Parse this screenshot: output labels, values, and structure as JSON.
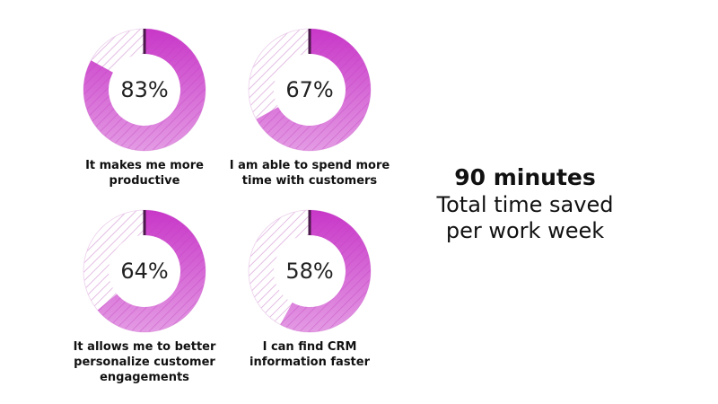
{
  "chart_data": [
    {
      "type": "donut",
      "values": [
        83
      ],
      "value_labels": [
        "83%"
      ],
      "label": "It makes me more productive",
      "color": "#c837c8"
    },
    {
      "type": "donut",
      "values": [
        67
      ],
      "value_labels": [
        "67%"
      ],
      "label": "I am able to spend more time with customers",
      "color": "#c837c8"
    },
    {
      "type": "donut",
      "values": [
        64
      ],
      "value_labels": [
        "64%"
      ],
      "label": "It allows me to better personalize customer engagements",
      "color": "#c837c8"
    },
    {
      "type": "donut",
      "values": [
        58
      ],
      "value_labels": [
        "58%"
      ],
      "label": "I can find CRM information faster",
      "color": "#c837c8"
    }
  ],
  "callout": {
    "headline": "90 minutes",
    "text": "Total time saved per work week"
  }
}
